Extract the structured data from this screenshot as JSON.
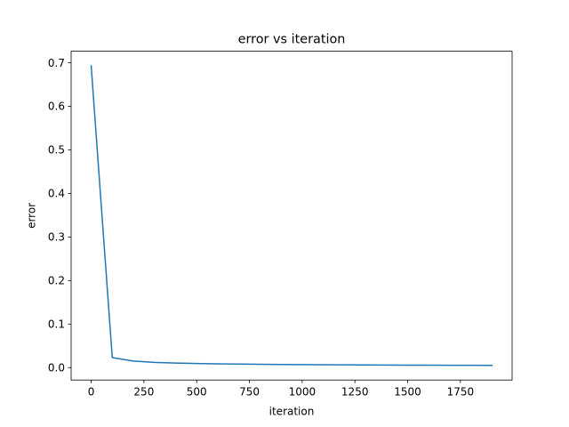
{
  "chart_data": {
    "type": "line",
    "title": "error vs iteration",
    "xlabel": "iteration",
    "ylabel": "error",
    "xlim": [
      -95,
      1995
    ],
    "ylim": [
      -0.0285,
      0.7265
    ],
    "xticks": [
      0,
      250,
      500,
      750,
      1000,
      1250,
      1500,
      1750
    ],
    "xtick_labels": [
      "0",
      "250",
      "500",
      "750",
      "1000",
      "1250",
      "1500",
      "1750"
    ],
    "yticks": [
      0.0,
      0.1,
      0.2,
      0.3,
      0.4,
      0.5,
      0.6,
      0.7
    ],
    "ytick_labels": [
      "0.0",
      "0.1",
      "0.2",
      "0.3",
      "0.4",
      "0.5",
      "0.6",
      "0.7"
    ],
    "grid": false,
    "series": [
      {
        "color": "#1f77b4",
        "x": [
          0,
          100,
          200,
          300,
          400,
          500,
          600,
          700,
          800,
          900,
          1000,
          1100,
          1200,
          1300,
          1400,
          1500,
          1600,
          1700,
          1800,
          1900
        ],
        "y": [
          0.693,
          0.023,
          0.015,
          0.012,
          0.0105,
          0.0095,
          0.0087,
          0.0081,
          0.0076,
          0.0072,
          0.0069,
          0.0066,
          0.0063,
          0.0061,
          0.0059,
          0.0057,
          0.0056,
          0.0054,
          0.0053,
          0.0052
        ]
      }
    ]
  }
}
